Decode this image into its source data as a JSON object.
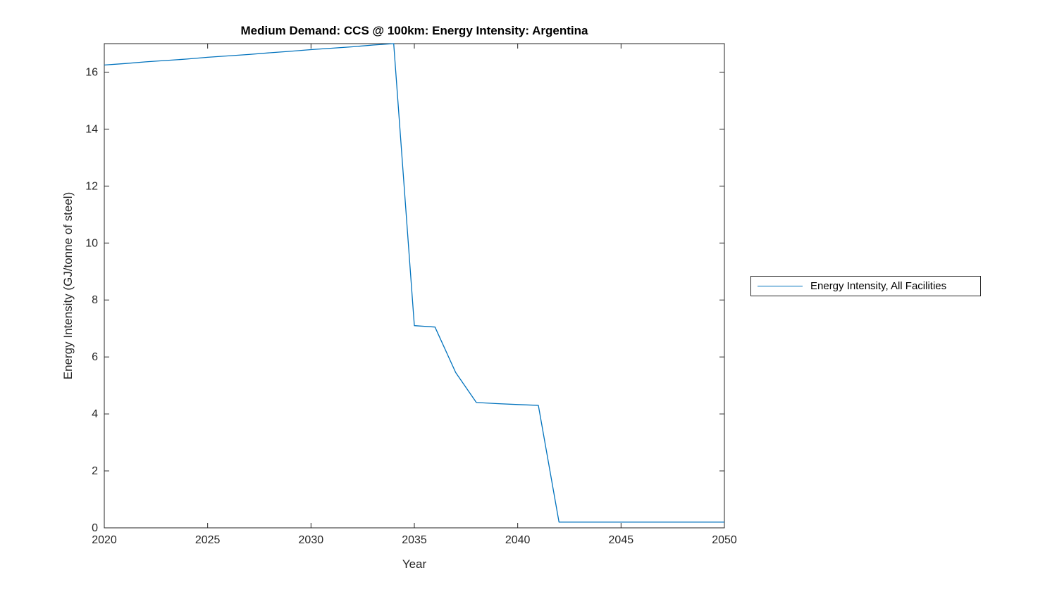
{
  "chart_data": {
    "type": "line",
    "title": "Medium Demand: CCS @ 100km: Energy Intensity: Argentina",
    "xlabel": "Year",
    "ylabel": "Energy Intensity (GJ/tonne of steel)",
    "xlim": [
      2020,
      2050
    ],
    "ylim": [
      0,
      17
    ],
    "x_ticks": [
      2020,
      2025,
      2030,
      2035,
      2040,
      2045,
      2050
    ],
    "y_ticks": [
      0,
      2,
      4,
      6,
      8,
      10,
      12,
      14,
      16
    ],
    "grid": false,
    "box": true,
    "tick_direction": "in",
    "axis_color": "#262626",
    "line_color": "#0072BD",
    "background_color": "#ffffff",
    "legend": {
      "position": "outside-right",
      "entries": [
        "Energy Intensity, All Facilities"
      ]
    },
    "series": [
      {
        "name": "Energy Intensity, All Facilities",
        "x": [
          2020,
          2021,
          2022,
          2023,
          2024,
          2025,
          2026,
          2027,
          2028,
          2029,
          2030,
          2031,
          2032,
          2033,
          2034,
          2035,
          2036,
          2037,
          2038,
          2039,
          2040,
          2041,
          2042,
          2043,
          2044,
          2045,
          2046,
          2047,
          2048,
          2049,
          2050
        ],
        "y": [
          16.25,
          16.3,
          16.36,
          16.41,
          16.46,
          16.52,
          16.57,
          16.62,
          16.68,
          16.73,
          16.79,
          16.84,
          16.89,
          16.95,
          17.0,
          7.1,
          7.05,
          5.45,
          4.4,
          4.36,
          4.33,
          4.3,
          0.2,
          0.2,
          0.2,
          0.2,
          0.2,
          0.2,
          0.2,
          0.2,
          0.2
        ]
      }
    ]
  }
}
